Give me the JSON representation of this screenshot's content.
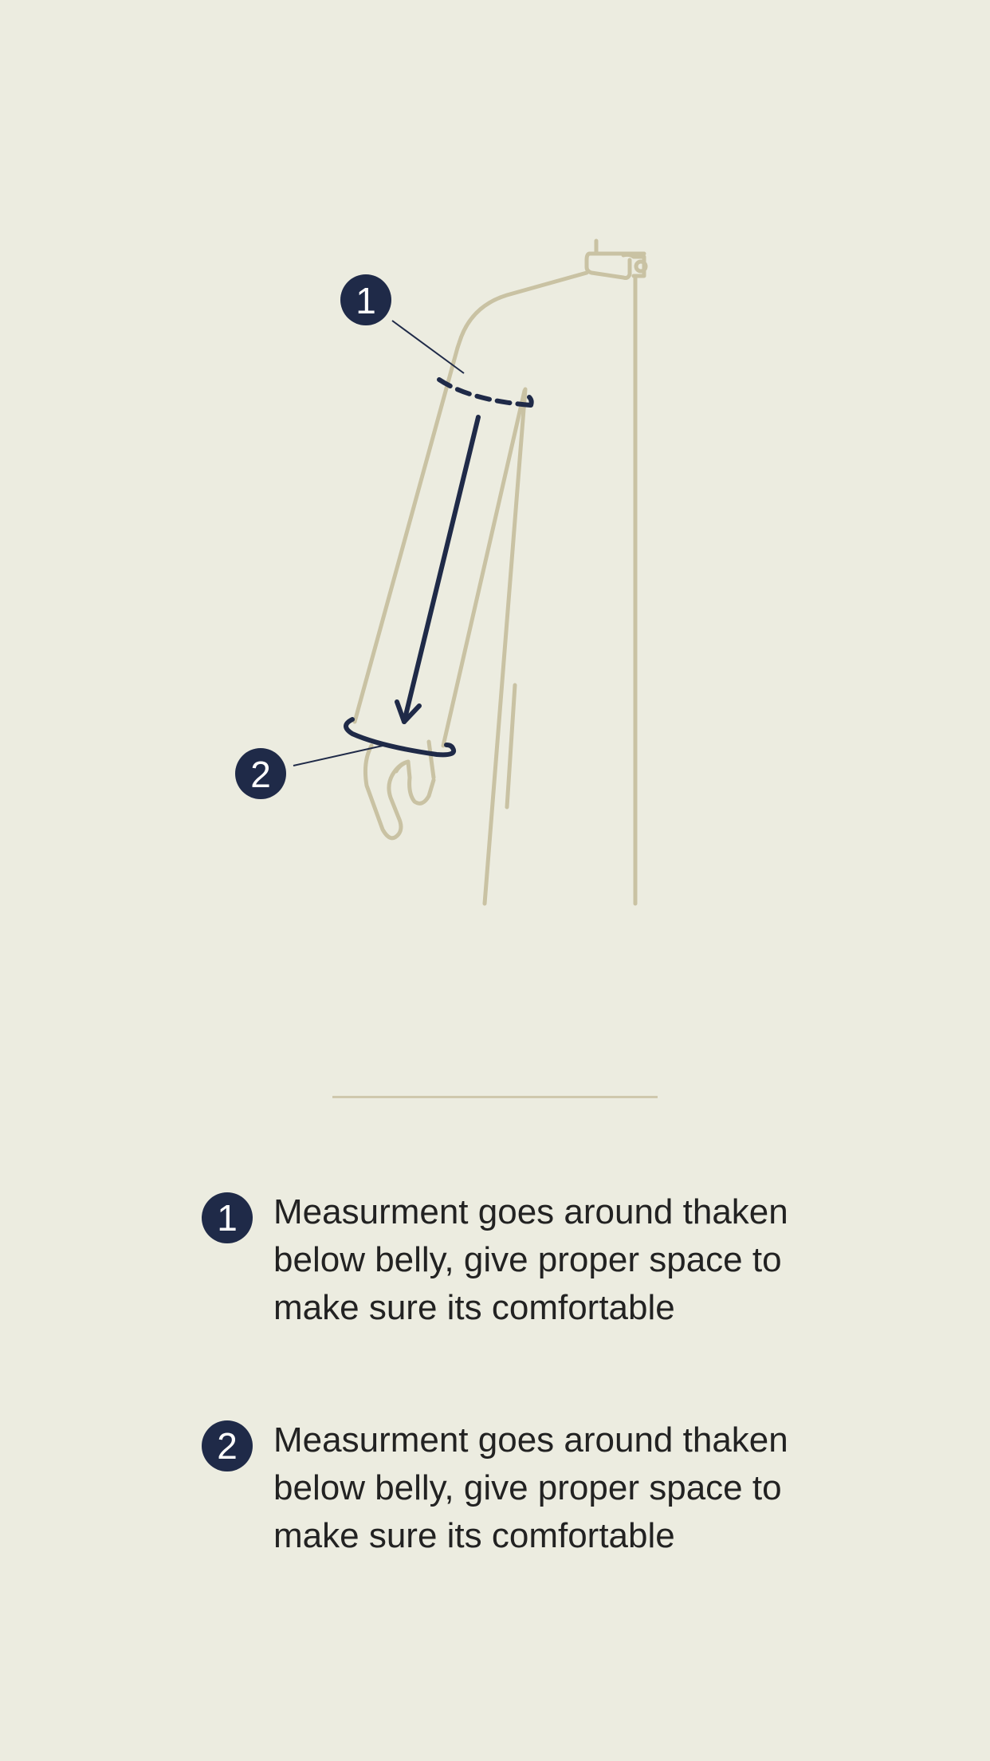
{
  "illustration": {
    "callouts": [
      {
        "number": "1"
      },
      {
        "number": "2"
      }
    ],
    "colors": {
      "background": "#ecece0",
      "figure_line": "#c9c2a3",
      "accent": "#1f2a48",
      "badge_text": "#ffffff"
    }
  },
  "instructions": [
    {
      "number": "1",
      "text": "Measurment goes around thaken below belly, give proper space to make sure its comfortable"
    },
    {
      "number": "2",
      "text": "Measurment goes around thaken below belly, give proper space to make sure its comfortable"
    }
  ]
}
